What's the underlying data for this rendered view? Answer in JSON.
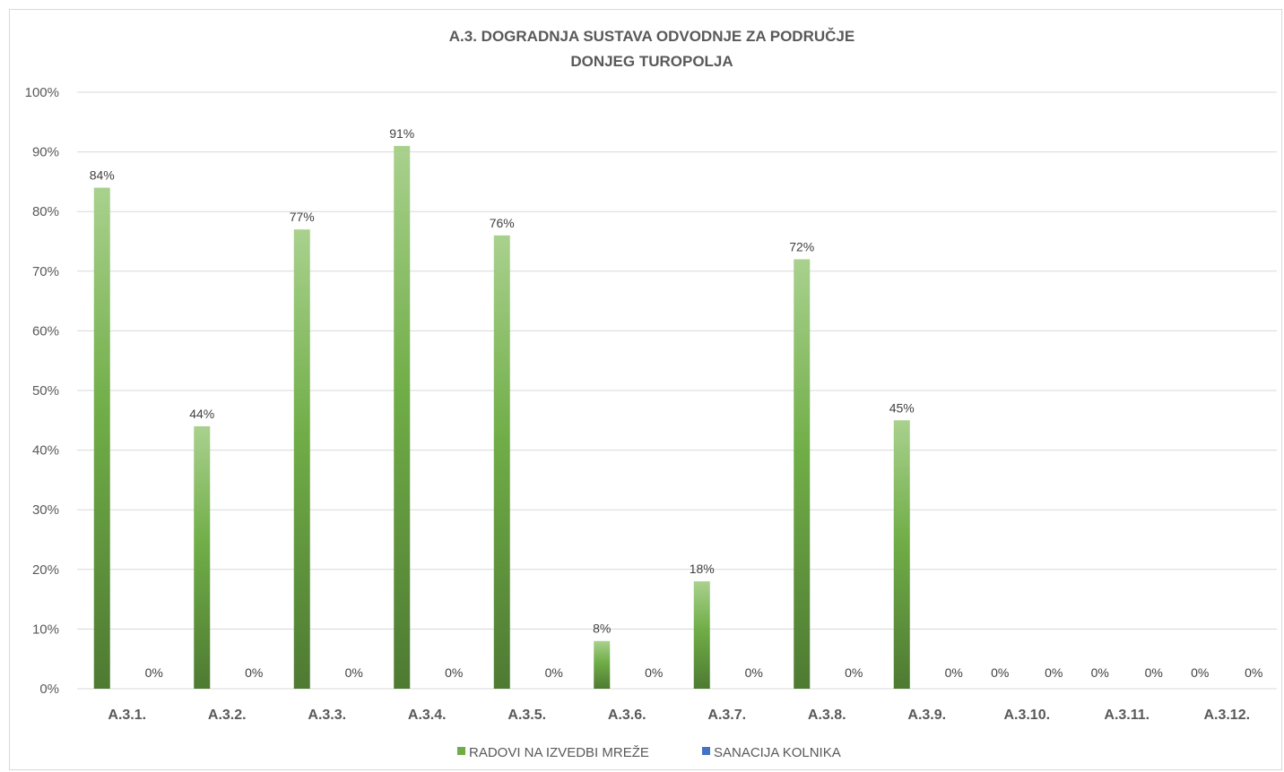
{
  "chart_data": {
    "type": "bar",
    "title": [
      "A.3. DOGRADNJA SUSTAVA ODVODNJE ZA PODRUČJE",
      "DONJEG TUROPOLJA"
    ],
    "categories": [
      "A.3.1.",
      "A.3.2.",
      "A.3.3.",
      "A.3.4.",
      "A.3.5.",
      "A.3.6.",
      "A.3.7.",
      "A.3.8.",
      "A.3.9.",
      "A.3.10.",
      "A.3.11.",
      "A.3.12."
    ],
    "series": [
      {
        "name": "RADOVI NA IZVEDBI MREŽE",
        "color": "#70ad47",
        "values": [
          84,
          44,
          77,
          91,
          76,
          8,
          18,
          72,
          45,
          0,
          0,
          0
        ],
        "labels": [
          "84%",
          "44%",
          "77%",
          "91%",
          "76%",
          "8%",
          "18%",
          "72%",
          "45%",
          "0%",
          "0%",
          "0%"
        ]
      },
      {
        "name": "SANACIJA KOLNIKA",
        "color": "#4472c4",
        "values": [
          0,
          0,
          0,
          0,
          0,
          0,
          0,
          0,
          0,
          0,
          0,
          0
        ],
        "labels": [
          "0%",
          "0%",
          "0%",
          "0%",
          "0%",
          "0%",
          "0%",
          "0%",
          "0%",
          "0%",
          "0%",
          "0%"
        ]
      }
    ],
    "yticks": [
      "0%",
      "10%",
      "20%",
      "30%",
      "40%",
      "50%",
      "60%",
      "70%",
      "80%",
      "90%",
      "100%"
    ],
    "ylim": [
      0,
      100
    ],
    "grid": true,
    "legend_position": "bottom"
  }
}
